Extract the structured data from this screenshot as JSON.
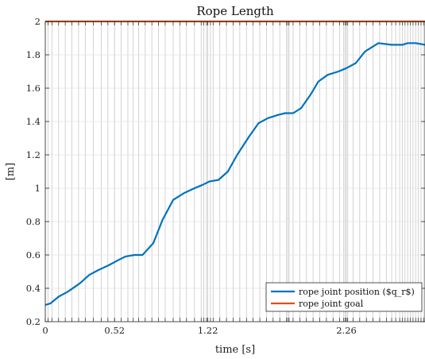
{
  "chart_data": {
    "type": "line",
    "title": "Rope Length",
    "xlabel": "time [s]",
    "ylabel": "[m]",
    "xlim": [
      0,
      2.85
    ],
    "ylim": [
      0.2,
      2.0
    ],
    "xticks": [
      0,
      0.52,
      1.22,
      2.26
    ],
    "xtick_labels": [
      "0",
      "0.52",
      "1.22",
      "2.26"
    ],
    "yticks": [
      0.2,
      0.4,
      0.6,
      0.8,
      1.0,
      1.2,
      1.4,
      1.6,
      1.8,
      2.0
    ],
    "ytick_labels": [
      "0.2",
      "0.4",
      "0.6",
      "0.8",
      "1",
      "1.2",
      "1.4",
      "1.6",
      "1.8",
      "2"
    ],
    "grid": true,
    "legend_position": "bottom-right",
    "vertical_event_lines": [
      0.02,
      0.05,
      0.1,
      0.15,
      0.2,
      0.25,
      0.3,
      0.36,
      0.42,
      0.47,
      0.52,
      0.57,
      0.62,
      0.66,
      0.7,
      0.75,
      0.8,
      0.85,
      0.9,
      0.96,
      1.01,
      1.06,
      1.12,
      1.17,
      1.19,
      1.21,
      1.22,
      1.24,
      1.26,
      1.31,
      1.36,
      1.41,
      1.46,
      1.51,
      1.56,
      1.61,
      1.66,
      1.71,
      1.76,
      1.81,
      1.82,
      1.83,
      1.86,
      1.91,
      1.96,
      2.01,
      2.06,
      2.11,
      2.16,
      2.21,
      2.24,
      2.25,
      2.26,
      2.27,
      2.31,
      2.36,
      2.41,
      2.46,
      2.51,
      2.56,
      2.6,
      2.63,
      2.66,
      2.68,
      2.7,
      2.72,
      2.74,
      2.76,
      2.78,
      2.8,
      2.82,
      2.84
    ],
    "series": [
      {
        "name": "rope joint position ($q_r$)",
        "color": "#0072BD",
        "x": [
          0,
          0.04,
          0.1,
          0.17,
          0.26,
          0.33,
          0.4,
          0.48,
          0.55,
          0.6,
          0.67,
          0.73,
          0.81,
          0.88,
          0.96,
          1.04,
          1.12,
          1.18,
          1.23,
          1.3,
          1.37,
          1.44,
          1.53,
          1.6,
          1.67,
          1.75,
          1.8,
          1.86,
          1.92,
          1.99,
          2.05,
          2.12,
          2.2,
          2.26,
          2.33,
          2.4,
          2.5,
          2.6,
          2.68,
          2.72,
          2.78,
          2.85
        ],
        "y": [
          0.3,
          0.31,
          0.35,
          0.38,
          0.43,
          0.48,
          0.51,
          0.54,
          0.57,
          0.59,
          0.6,
          0.6,
          0.67,
          0.81,
          0.93,
          0.97,
          1.0,
          1.02,
          1.04,
          1.05,
          1.1,
          1.2,
          1.31,
          1.39,
          1.42,
          1.44,
          1.45,
          1.45,
          1.48,
          1.56,
          1.64,
          1.68,
          1.7,
          1.72,
          1.75,
          1.82,
          1.87,
          1.86,
          1.86,
          1.87,
          1.87,
          1.86
        ]
      },
      {
        "name": "rope joint goal",
        "color": "#D95319",
        "x": [
          0,
          2.85
        ],
        "y": [
          2.0,
          2.0
        ]
      }
    ]
  }
}
